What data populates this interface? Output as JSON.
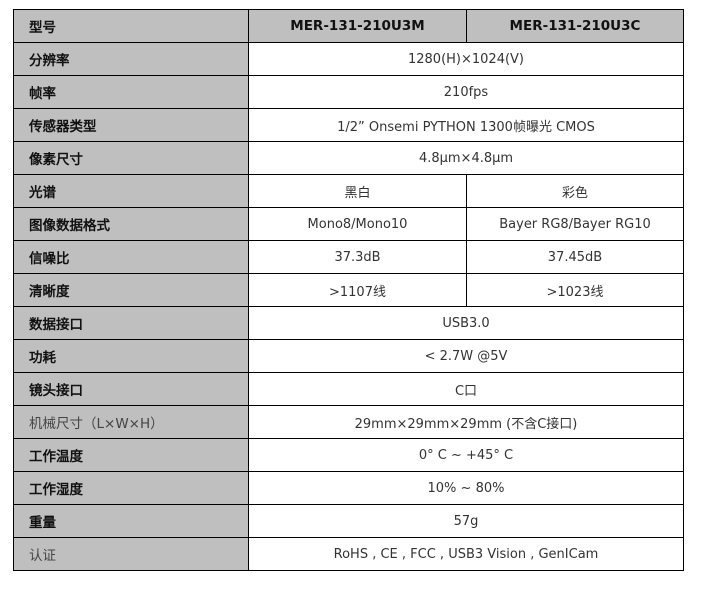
{
  "header": {
    "label": "型号",
    "models": [
      "MER-131-210U3M",
      "MER-131-210U3C"
    ]
  },
  "rows": [
    {
      "label": "分辨率",
      "value": "1280(H)×1024(V)"
    },
    {
      "label": "帧率",
      "value": "210fps"
    },
    {
      "label": "传感器类型",
      "value": "1/2” Onsemi PYTHON 1300帧曝光 CMOS"
    },
    {
      "label": "像素尺寸",
      "value": "4.8μm×4.8μm"
    },
    {
      "label": "光谱",
      "m": "黑白",
      "c": "彩色"
    },
    {
      "label": "图像数据格式",
      "m": "Mono8/Mono10",
      "c": "Bayer RG8/Bayer RG10"
    },
    {
      "label": "信噪比",
      "m": "37.3dB",
      "c": "37.45dB"
    },
    {
      "label": "清晰度",
      "m": ">1107线",
      "c": ">1023线"
    },
    {
      "label": "数据接口",
      "value": "USB3.0"
    },
    {
      "label": "功耗",
      "value": "< 2.7W @5V"
    },
    {
      "label": "镜头接口",
      "value": "C口"
    },
    {
      "label": "机械尺寸（L×W×H）",
      "value": "29mm×29mm×29mm (不含C接口)",
      "soft": true
    },
    {
      "label": "工作温度",
      "value": "0° C ~ +45° C"
    },
    {
      "label": "工作湿度",
      "value": "10% ~ 80%"
    },
    {
      "label": "重量",
      "value": "57g"
    },
    {
      "label": "认证",
      "value": "RoHS , CE , FCC , USB3 Vision , GenICam",
      "soft": true
    }
  ]
}
